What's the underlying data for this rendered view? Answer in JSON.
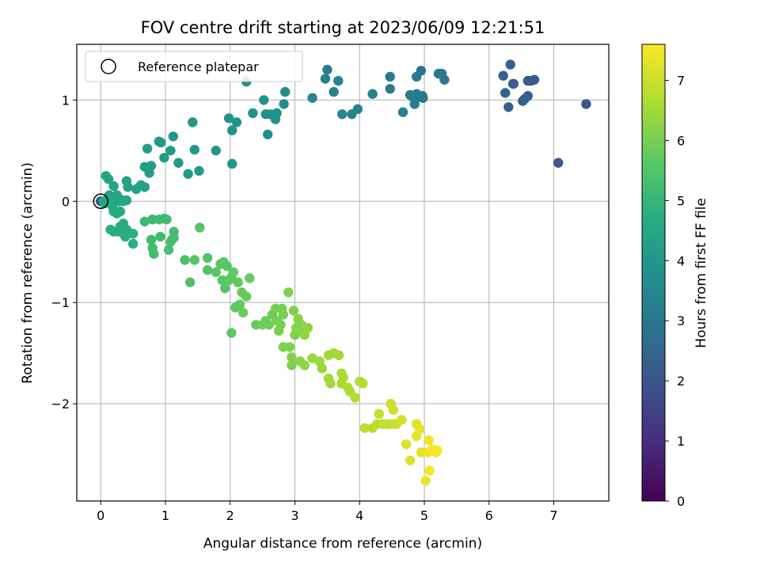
{
  "chart_data": {
    "type": "scatter",
    "title": "FOV centre drift starting at 2023/06/09 12:21:51",
    "xlabel": "Angular distance from reference (arcmin)",
    "ylabel": "Rotation from reference (arcmin)",
    "xlim": [
      -0.37,
      7.85
    ],
    "ylim": [
      -2.96,
      1.55
    ],
    "xticks": [
      0,
      1,
      2,
      3,
      4,
      5,
      6,
      7
    ],
    "yticks": [
      -2,
      -1,
      0,
      1
    ],
    "ytick_labels": [
      "−2",
      "−1",
      "0",
      "1"
    ],
    "grid": true,
    "legend": {
      "placement": "upper-left",
      "entries": [
        {
          "label": "Reference platepar",
          "marker": "open-circle",
          "color": "#000000"
        }
      ],
      "reference_point": {
        "x": 0,
        "y": 0
      }
    },
    "colorbar": {
      "label": "Hours from first FF file",
      "range": [
        0,
        7.6
      ],
      "ticks": [
        0,
        1,
        2,
        3,
        4,
        5,
        6,
        7
      ],
      "colormap": "viridis"
    },
    "points": [
      [
        0.0,
        0.0,
        1.6
      ],
      [
        0.04,
        0.0,
        4.5
      ],
      [
        0.06,
        -0.02,
        4.5
      ],
      [
        0.08,
        0.25,
        4.4
      ],
      [
        0.12,
        0.22,
        4.4
      ],
      [
        0.13,
        0.06,
        4.5
      ],
      [
        0.15,
        0.0,
        4.5
      ],
      [
        0.18,
        -0.05,
        4.6
      ],
      [
        0.2,
        0.15,
        4.4
      ],
      [
        0.22,
        0.02,
        4.5
      ],
      [
        0.25,
        0.06,
        4.5
      ],
      [
        0.28,
        0.0,
        4.5
      ],
      [
        0.3,
        0.02,
        4.5
      ],
      [
        0.2,
        -0.1,
        4.6
      ],
      [
        0.25,
        -0.12,
        4.6
      ],
      [
        0.3,
        -0.1,
        4.6
      ],
      [
        0.35,
        0.0,
        4.5
      ],
      [
        0.4,
        0.01,
        4.5
      ],
      [
        0.3,
        -0.25,
        4.7
      ],
      [
        0.35,
        -0.22,
        4.7
      ],
      [
        0.4,
        -0.28,
        4.7
      ],
      [
        0.2,
        -0.3,
        4.7
      ],
      [
        0.15,
        -0.28,
        4.7
      ],
      [
        0.28,
        -0.3,
        4.7
      ],
      [
        0.38,
        -0.35,
        4.7
      ],
      [
        0.5,
        -0.32,
        4.8
      ],
      [
        0.5,
        -0.42,
        4.8
      ],
      [
        0.4,
        0.2,
        4.4
      ],
      [
        0.42,
        0.14,
        4.4
      ],
      [
        0.55,
        0.12,
        4.4
      ],
      [
        0.62,
        0.16,
        4.4
      ],
      [
        0.68,
        0.14,
        4.3
      ],
      [
        0.68,
        0.34,
        4.2
      ],
      [
        0.72,
        0.52,
        4.1
      ],
      [
        0.75,
        0.28,
        4.2
      ],
      [
        0.78,
        0.35,
        4.2
      ],
      [
        0.93,
        0.58,
        4.1
      ],
      [
        0.9,
        0.59,
        4.1
      ],
      [
        0.98,
        0.43,
        4.1
      ],
      [
        1.08,
        0.5,
        4.1
      ],
      [
        1.12,
        0.64,
        4.0
      ],
      [
        1.2,
        0.38,
        4.1
      ],
      [
        1.35,
        0.27,
        4.1
      ],
      [
        1.42,
        0.78,
        4.0
      ],
      [
        1.45,
        0.51,
        4.0
      ],
      [
        1.52,
        0.3,
        4.1
      ],
      [
        1.78,
        0.5,
        4.0
      ],
      [
        1.98,
        0.82,
        3.9
      ],
      [
        2.03,
        0.37,
        4.0
      ],
      [
        2.03,
        0.7,
        3.9
      ],
      [
        2.1,
        0.78,
        3.9
      ],
      [
        2.25,
        1.18,
        3.7
      ],
      [
        2.35,
        0.87,
        3.8
      ],
      [
        2.52,
        1.0,
        3.8
      ],
      [
        2.55,
        0.86,
        3.8
      ],
      [
        2.58,
        0.66,
        3.8
      ],
      [
        2.62,
        0.86,
        3.8
      ],
      [
        2.7,
        0.81,
        3.8
      ],
      [
        2.72,
        0.87,
        3.8
      ],
      [
        2.83,
        0.96,
        3.7
      ],
      [
        2.85,
        1.08,
        3.7
      ],
      [
        3.27,
        1.02,
        3.5
      ],
      [
        3.47,
        1.21,
        3.3
      ],
      [
        3.5,
        1.3,
        3.2
      ],
      [
        3.6,
        1.08,
        3.3
      ],
      [
        3.67,
        1.19,
        3.3
      ],
      [
        3.73,
        0.86,
        3.4
      ],
      [
        3.88,
        0.86,
        3.4
      ],
      [
        3.97,
        0.91,
        3.4
      ],
      [
        4.2,
        1.06,
        3.3
      ],
      [
        4.47,
        1.11,
        3.2
      ],
      [
        4.47,
        1.23,
        3.1
      ],
      [
        4.67,
        0.88,
        3.3
      ],
      [
        4.78,
        1.05,
        3.1
      ],
      [
        4.82,
        1.03,
        3.1
      ],
      [
        4.85,
        0.96,
        3.2
      ],
      [
        4.88,
        1.06,
        3.1
      ],
      [
        4.88,
        1.23,
        3.1
      ],
      [
        4.93,
        1.03,
        3.1
      ],
      [
        4.95,
        1.29,
        3.0
      ],
      [
        4.97,
        1.04,
        3.0
      ],
      [
        4.98,
        1.02,
        3.1
      ],
      [
        5.22,
        1.26,
        3.0
      ],
      [
        5.27,
        1.26,
        3.0
      ],
      [
        5.31,
        1.2,
        3.0
      ],
      [
        6.22,
        1.24,
        2.4
      ],
      [
        6.25,
        1.07,
        2.4
      ],
      [
        6.3,
        0.93,
        2.4
      ],
      [
        6.33,
        1.35,
        2.3
      ],
      [
        6.37,
        1.16,
        2.3
      ],
      [
        6.38,
        1.16,
        2.3
      ],
      [
        6.52,
        0.99,
        2.3
      ],
      [
        6.55,
        1.01,
        2.3
      ],
      [
        6.6,
        1.04,
        2.3
      ],
      [
        6.6,
        1.19,
        2.2
      ],
      [
        6.65,
        1.19,
        2.2
      ],
      [
        6.7,
        1.2,
        2.2
      ],
      [
        7.07,
        0.38,
        2.1
      ],
      [
        7.5,
        0.96,
        2.0
      ],
      [
        0.68,
        -0.2,
        5.1
      ],
      [
        0.8,
        -0.18,
        5.1
      ],
      [
        0.78,
        -0.38,
        5.2
      ],
      [
        0.8,
        -0.46,
        5.2
      ],
      [
        0.82,
        -0.52,
        5.2
      ],
      [
        0.9,
        -0.18,
        5.2
      ],
      [
        0.92,
        -0.35,
        5.2
      ],
      [
        0.98,
        -0.17,
        5.2
      ],
      [
        1.02,
        -0.18,
        5.2
      ],
      [
        1.05,
        -0.48,
        5.3
      ],
      [
        1.08,
        -0.4,
        5.3
      ],
      [
        1.1,
        -0.38,
        5.3
      ],
      [
        1.13,
        -0.3,
        5.3
      ],
      [
        1.13,
        -0.36,
        5.3
      ],
      [
        1.3,
        -0.58,
        5.4
      ],
      [
        1.38,
        -0.8,
        5.4
      ],
      [
        1.45,
        -0.58,
        5.5
      ],
      [
        1.53,
        -0.26,
        5.5
      ],
      [
        1.65,
        -0.56,
        5.5
      ],
      [
        1.65,
        -0.68,
        5.5
      ],
      [
        1.78,
        -0.7,
        5.6
      ],
      [
        1.85,
        -0.62,
        5.6
      ],
      [
        1.88,
        -0.78,
        5.6
      ],
      [
        1.9,
        -0.6,
        5.6
      ],
      [
        1.92,
        -0.86,
        5.6
      ],
      [
        1.95,
        -0.64,
        5.6
      ],
      [
        1.98,
        -0.78,
        5.7
      ],
      [
        2.02,
        -0.75,
        5.7
      ],
      [
        2.02,
        -1.3,
        5.7
      ],
      [
        2.05,
        -0.7,
        5.7
      ],
      [
        2.08,
        -1.05,
        5.7
      ],
      [
        2.12,
        -0.8,
        5.7
      ],
      [
        2.15,
        -1.02,
        5.7
      ],
      [
        2.18,
        -0.9,
        5.8
      ],
      [
        2.2,
        -1.1,
        5.8
      ],
      [
        2.25,
        -0.94,
        5.8
      ],
      [
        2.3,
        -0.76,
        5.8
      ],
      [
        2.4,
        -1.22,
        5.8
      ],
      [
        2.5,
        -1.22,
        5.9
      ],
      [
        2.55,
        -1.18,
        5.9
      ],
      [
        2.6,
        -1.22,
        5.9
      ],
      [
        2.65,
        -1.12,
        5.9
      ],
      [
        2.7,
        -1.06,
        6.0
      ],
      [
        2.72,
        -1.18,
        6.0
      ],
      [
        2.75,
        -1.28,
        6.0
      ],
      [
        2.78,
        -1.22,
        6.0
      ],
      [
        2.8,
        -1.06,
        6.0
      ],
      [
        2.82,
        -1.12,
        6.0
      ],
      [
        2.82,
        -1.44,
        6.1
      ],
      [
        2.9,
        -0.9,
        6.1
      ],
      [
        2.92,
        -1.44,
        6.1
      ],
      [
        2.95,
        -1.54,
        6.1
      ],
      [
        2.95,
        -1.62,
        6.1
      ],
      [
        2.98,
        -1.08,
        6.1
      ],
      [
        3.0,
        -1.32,
        6.1
      ],
      [
        3.02,
        -1.25,
        6.2
      ],
      [
        3.05,
        -1.16,
        6.2
      ],
      [
        3.08,
        -1.58,
        6.2
      ],
      [
        3.1,
        -1.22,
        6.2
      ],
      [
        3.12,
        -1.28,
        6.2
      ],
      [
        3.15,
        -1.32,
        6.3
      ],
      [
        3.15,
        -1.62,
        6.3
      ],
      [
        3.2,
        -1.25,
        6.3
      ],
      [
        3.27,
        -1.55,
        6.4
      ],
      [
        3.38,
        -1.58,
        6.4
      ],
      [
        3.42,
        -1.65,
        6.4
      ],
      [
        3.52,
        -1.52,
        6.5
      ],
      [
        3.52,
        -1.75,
        6.5
      ],
      [
        3.55,
        -1.8,
        6.5
      ],
      [
        3.6,
        -1.5,
        6.5
      ],
      [
        3.68,
        -1.52,
        6.5
      ],
      [
        3.72,
        -1.8,
        6.6
      ],
      [
        3.72,
        -1.7,
        6.6
      ],
      [
        3.75,
        -1.74,
        6.6
      ],
      [
        3.82,
        -1.84,
        6.6
      ],
      [
        3.85,
        -1.88,
        6.6
      ],
      [
        3.93,
        -1.94,
        6.7
      ],
      [
        4.0,
        -1.78,
        6.7
      ],
      [
        4.05,
        -1.8,
        6.7
      ],
      [
        4.08,
        -2.24,
        6.8
      ],
      [
        4.2,
        -2.24,
        6.8
      ],
      [
        4.27,
        -2.2,
        6.8
      ],
      [
        4.3,
        -2.1,
        6.9
      ],
      [
        4.35,
        -2.2,
        6.9
      ],
      [
        4.42,
        -2.2,
        6.9
      ],
      [
        4.47,
        -2.2,
        6.9
      ],
      [
        4.48,
        -2.0,
        7.0
      ],
      [
        4.52,
        -2.06,
        7.0
      ],
      [
        4.53,
        -2.2,
        7.0
      ],
      [
        4.57,
        -2.2,
        7.0
      ],
      [
        4.65,
        -2.16,
        7.1
      ],
      [
        4.72,
        -2.4,
        7.2
      ],
      [
        4.78,
        -2.56,
        7.2
      ],
      [
        4.88,
        -2.2,
        7.2
      ],
      [
        4.88,
        -2.32,
        7.3
      ],
      [
        4.93,
        -2.25,
        7.3
      ],
      [
        4.95,
        -2.48,
        7.3
      ],
      [
        5.02,
        -2.76,
        7.4
      ],
      [
        5.05,
        -2.48,
        7.4
      ],
      [
        5.07,
        -2.36,
        7.4
      ],
      [
        5.08,
        -2.66,
        7.5
      ],
      [
        5.12,
        -2.45,
        7.5
      ],
      [
        5.18,
        -2.48,
        7.5
      ],
      [
        5.2,
        -2.46,
        7.5
      ]
    ]
  }
}
